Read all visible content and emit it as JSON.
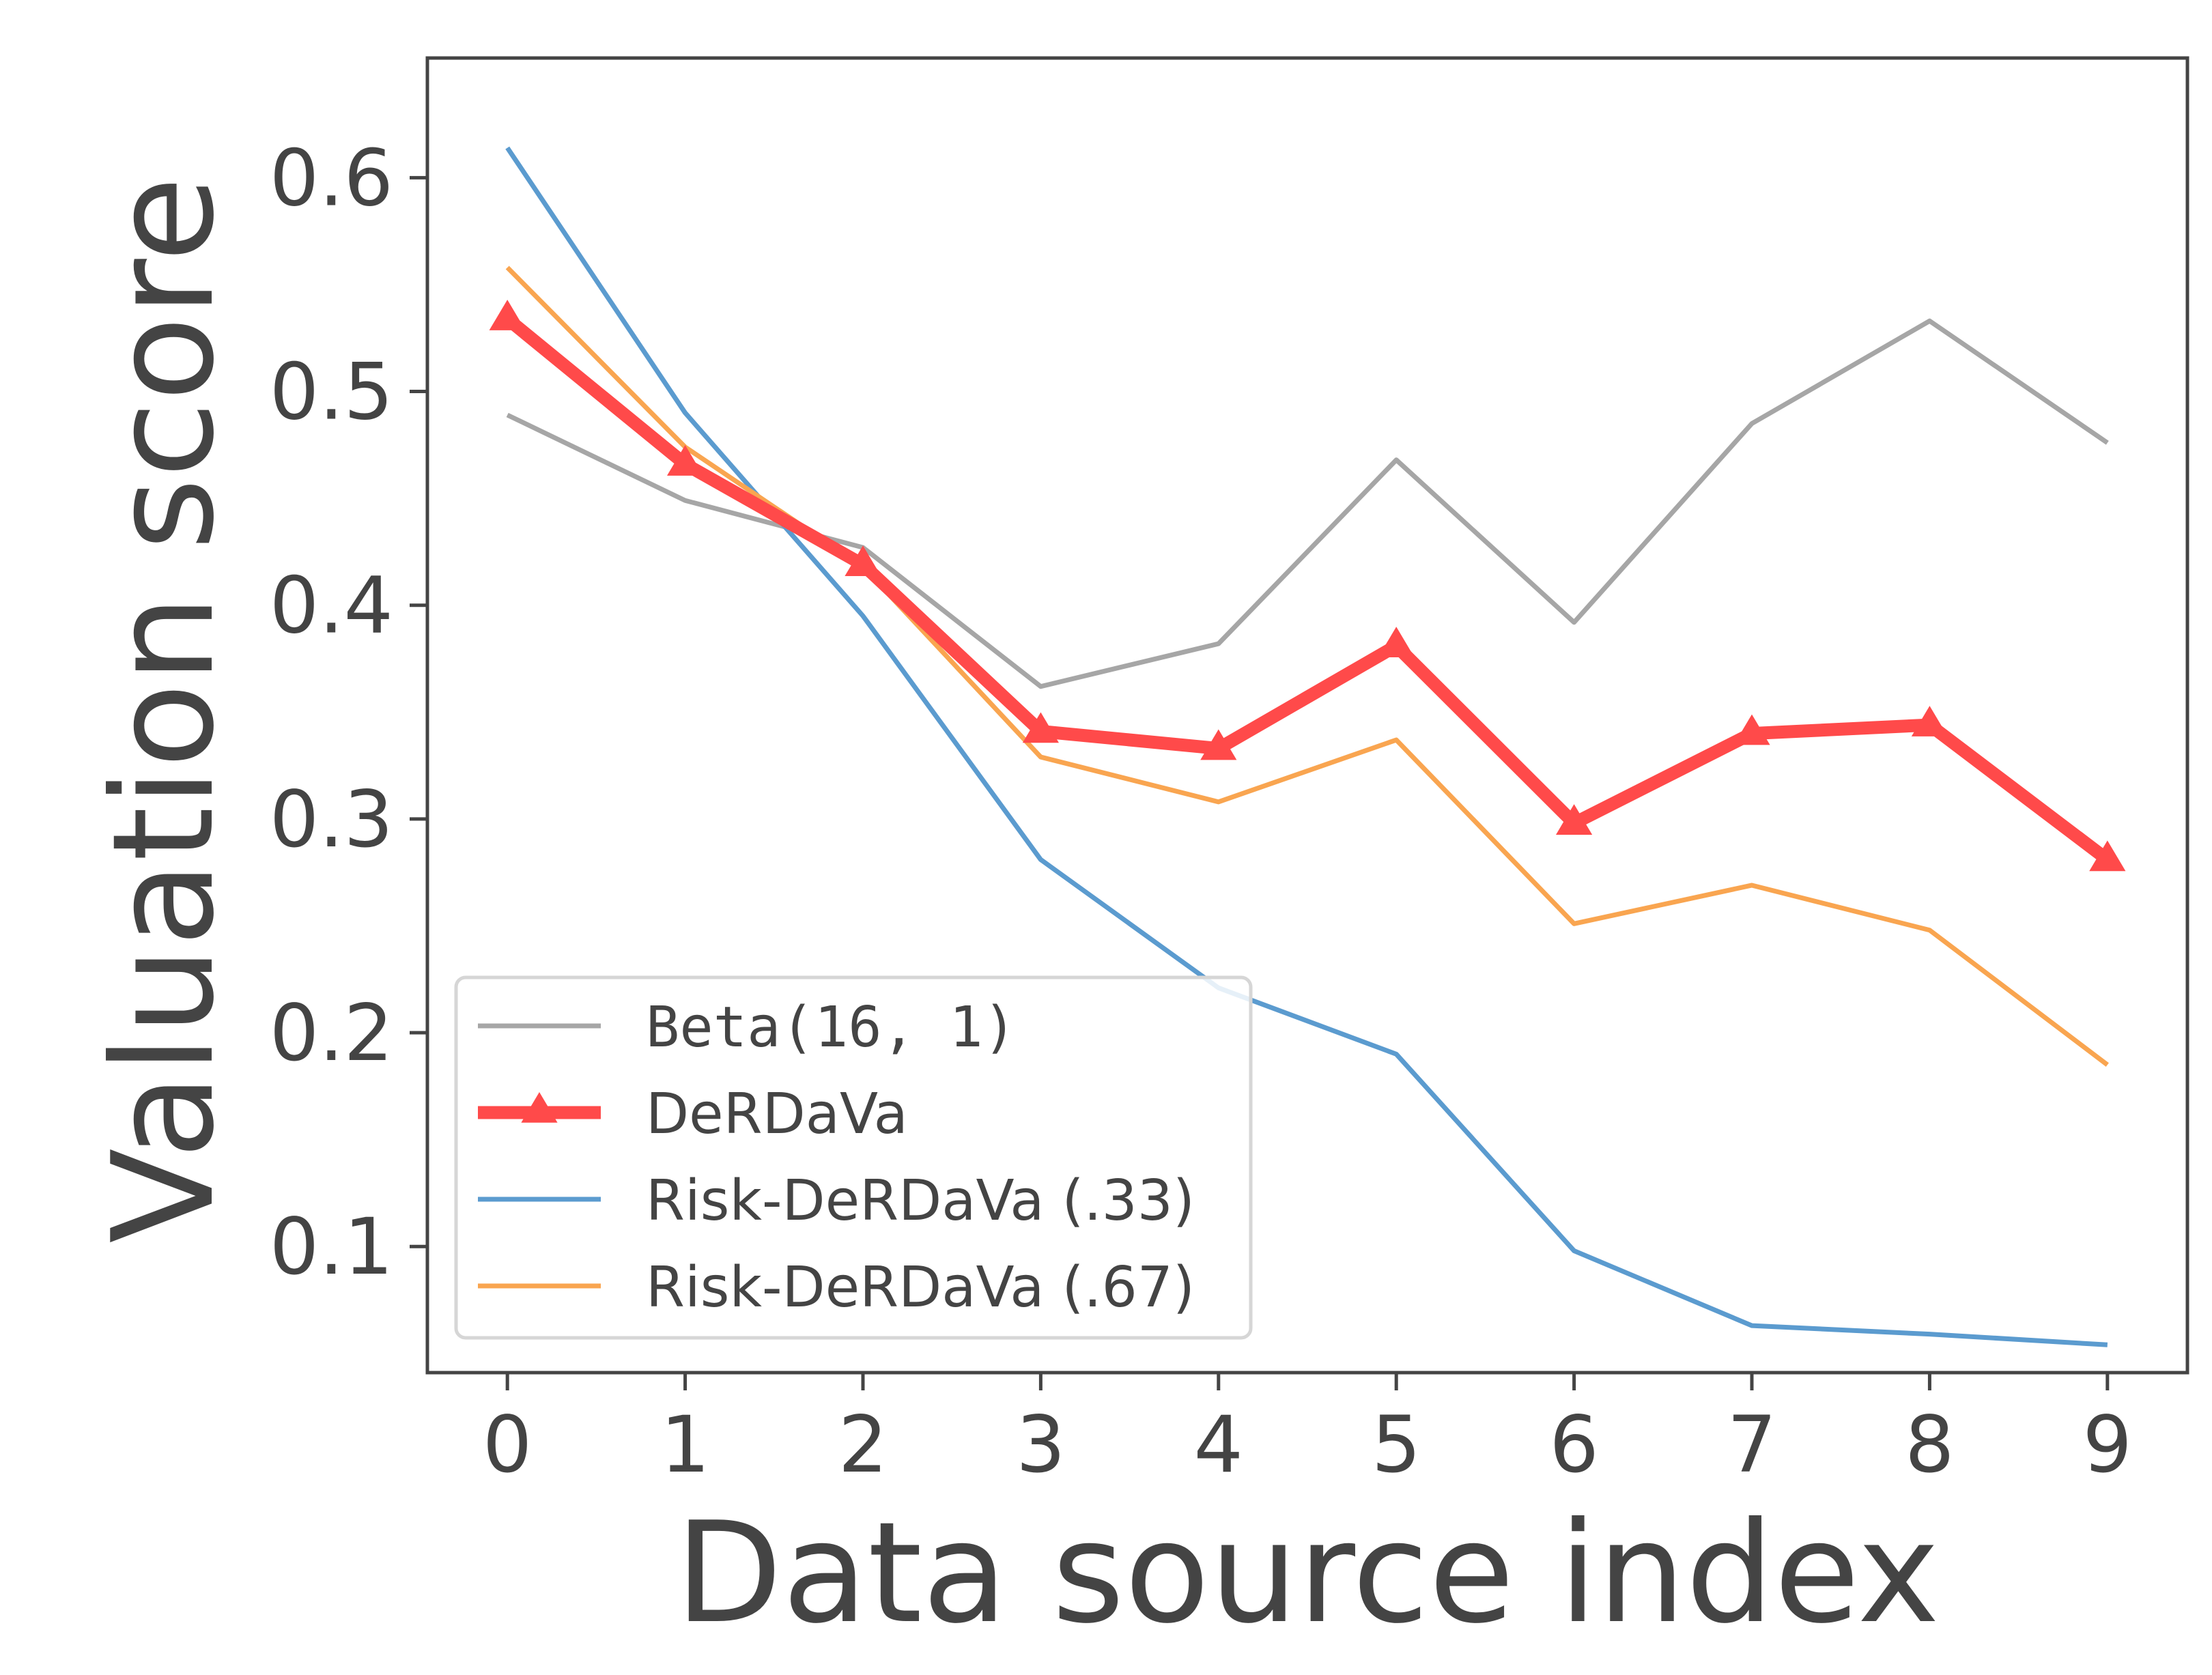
{
  "chart_data": {
    "type": "line",
    "title": "",
    "xlabel": "Data source index",
    "ylabel": "Valuation score",
    "x": [
      0,
      1,
      2,
      3,
      4,
      5,
      6,
      7,
      8,
      9
    ],
    "xlim": [
      -0.45,
      9.45
    ],
    "ylim": [
      0.041,
      0.656
    ],
    "xticks": [
      "0",
      "1",
      "2",
      "3",
      "4",
      "5",
      "6",
      "7",
      "8",
      "9"
    ],
    "yticks": [
      0.1,
      0.2,
      0.3,
      0.4,
      0.5,
      0.6
    ],
    "ytick_labels": [
      "0.1",
      "0.2",
      "0.3",
      "0.4",
      "0.5",
      "0.6"
    ],
    "grid": false,
    "legend_position": "lower-left",
    "series": [
      {
        "name": "Beta(16, 1)",
        "color": "#a6a6a6",
        "marker": "none",
        "values": [
          0.489,
          0.449,
          0.427,
          0.362,
          0.382,
          0.468,
          0.392,
          0.485,
          0.533,
          0.476
        ]
      },
      {
        "name": "DeRDaVa",
        "color": "#ff4a4a",
        "marker": "triangle",
        "values": [
          0.534,
          0.466,
          0.419,
          0.341,
          0.333,
          0.381,
          0.298,
          0.34,
          0.344,
          0.281
        ]
      },
      {
        "name": "Risk-DeRDaVa (.33)",
        "color": "#5b9bcf",
        "marker": "none",
        "values": [
          0.614,
          0.49,
          0.395,
          0.281,
          0.221,
          0.19,
          0.098,
          0.063,
          0.059,
          0.054
        ]
      },
      {
        "name": "Risk-DeRDaVa (.67)",
        "color": "#f9a550",
        "marker": "none",
        "values": [
          0.558,
          0.474,
          0.418,
          0.329,
          0.308,
          0.337,
          0.251,
          0.269,
          0.248,
          0.185
        ]
      }
    ]
  }
}
